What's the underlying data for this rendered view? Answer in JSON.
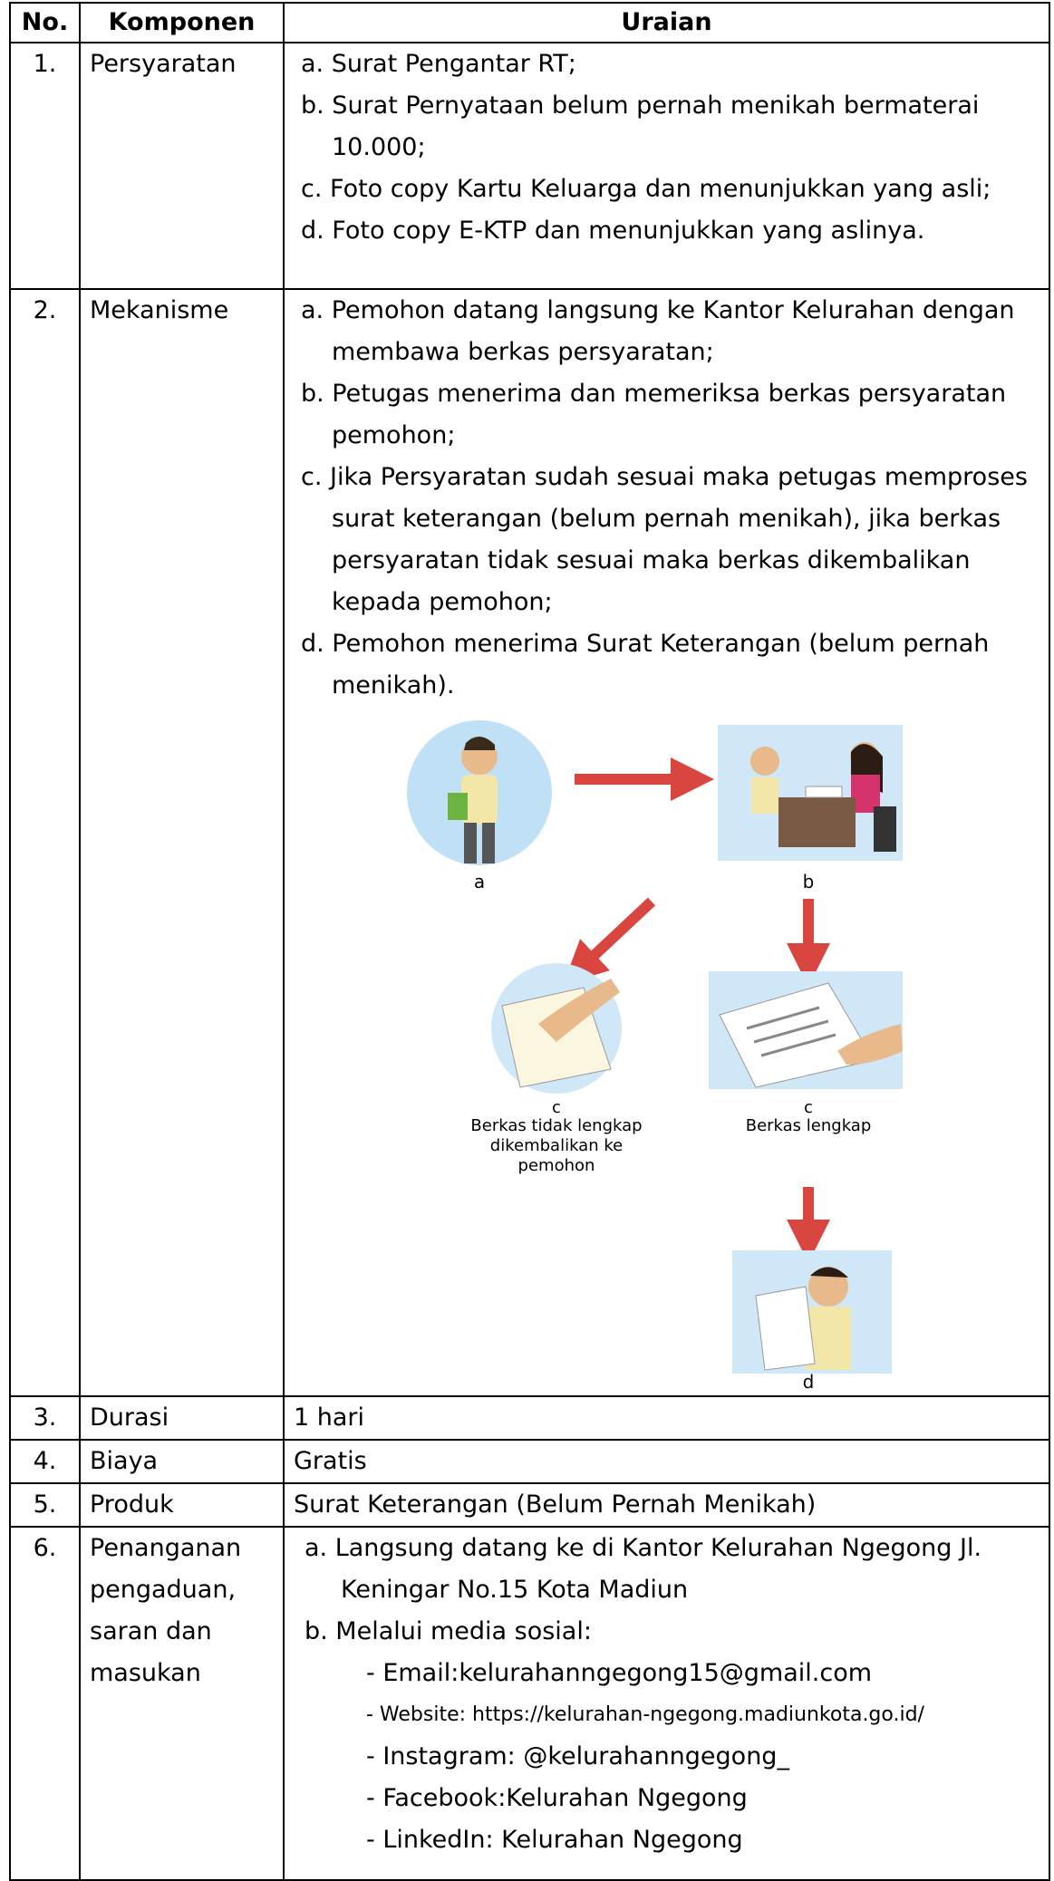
{
  "table": {
    "header": [
      "No.",
      "Komponen",
      "Uraian"
    ],
    "rows": [
      {
        "no": "1.",
        "komponen": "Persyaratan",
        "uraian": [
          "a. Surat Pengantar RT;",
          "b. Surat Pernyataan belum pernah menikah bermaterai 10.000;",
          "c. Foto copy Kartu Keluarga  dan  menunjukkan yang asli;",
          "d. Foto copy E-KTP dan menunjukkan yang aslinya."
        ]
      },
      {
        "no": "2.",
        "komponen": "Mekanisme",
        "uraian": [
          "a. Pemohon datang langsung ke Kantor Kelurahan dengan membawa berkas persyaratan;",
          "b. Petugas menerima dan memeriksa berkas persyaratan pemohon;",
          "c. Jika Persyaratan sudah sesuai maka petugas memproses surat keterangan (belum pernah menikah), jika berkas persyaratan tidak sesuai maka berkas dikembalikan kepada pemohon;",
          "d. Pemohon menerima Surat Keterangan (belum pernah menikah)."
        ],
        "flowchart": [
          {
            "label": "a"
          },
          {
            "label": "b"
          },
          {
            "label": "c",
            "caption": [
              "Berkas tidak lengkap",
              "dikembalikan ke",
              "pemohon"
            ]
          },
          {
            "label": "c",
            "caption": [
              "Berkas lengkap"
            ]
          },
          {
            "label": "d"
          }
        ]
      },
      {
        "no": "3.",
        "komponen": "Durasi",
        "uraian": [
          "1 hari"
        ]
      },
      {
        "no": "4.",
        "komponen": "Biaya",
        "uraian": [
          "Gratis"
        ]
      },
      {
        "no": "5.",
        "komponen": "Produk",
        "uraian": [
          "Surat Keterangan (Belum Pernah Menikah)"
        ]
      },
      {
        "no": "6.",
        "komponen": "Penanganan pengaduan, saran dan masukan",
        "uraian": [
          "a.  Langsung datang ke di Kantor Kelurahan Ngegong Jl. Keningar No.15 Kota Madiun",
          "b.  Melalui media sosial:"
        ],
        "sub": [
          "- Email:kelurahanngegong15@gmail.com",
          "- Website: https://kelurahan-ngegong.madiunkota.go.id/",
          "- Instagram: @kelurahanngegong_",
          "- Facebook:Kelurahan Ngegong",
          "- LinkedIn: Kelurahan Ngegong"
        ]
      }
    ]
  }
}
